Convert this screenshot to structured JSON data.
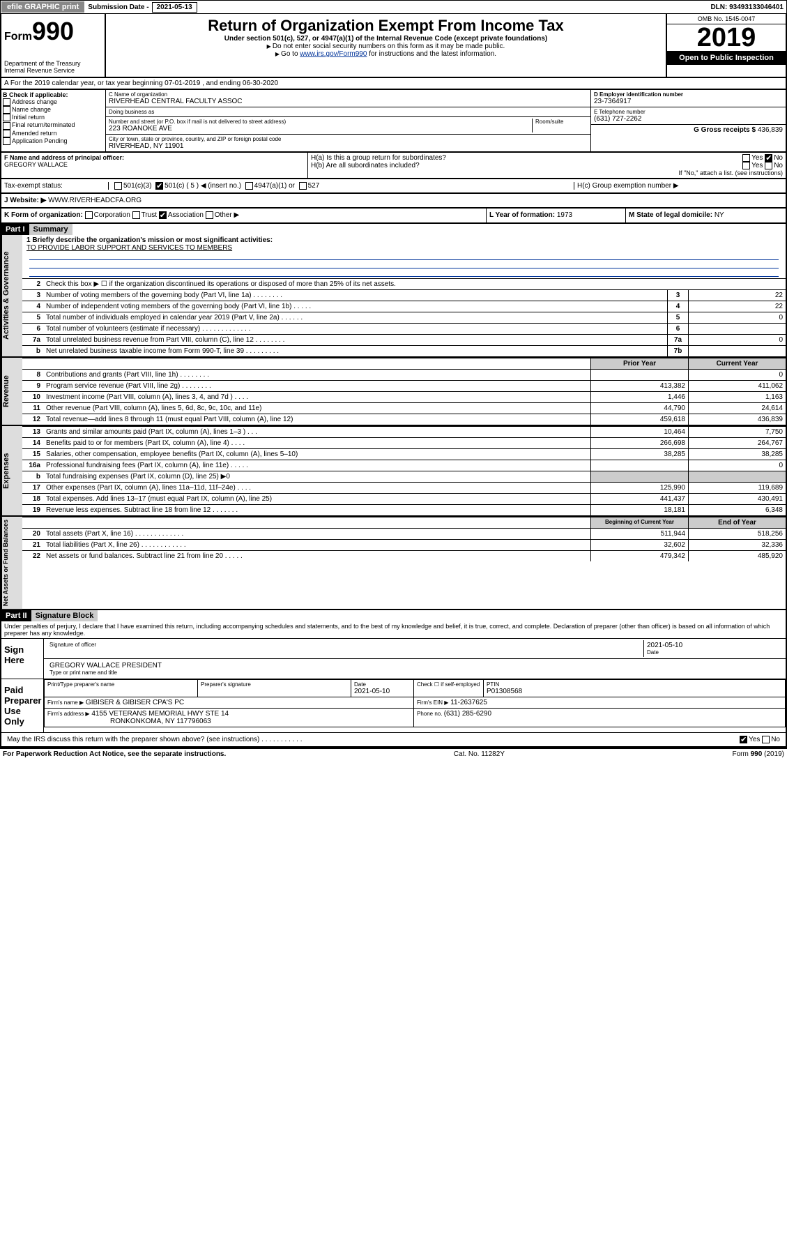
{
  "topbar": {
    "efile": "efile GRAPHIC print",
    "sub_label": "Submission Date - ",
    "sub_date": "2021-05-13",
    "dln_label": "DLN: ",
    "dln": "93493133046401"
  },
  "header": {
    "form_prefix": "Form",
    "form_number": "990",
    "dept": "Department of the Treasury\nInternal Revenue Service",
    "title": "Return of Organization Exempt From Income Tax",
    "sub1": "Under section 501(c), 527, or 4947(a)(1) of the Internal Revenue Code (except private foundations)",
    "note1": "Do not enter social security numbers on this form as it may be made public.",
    "note2_pre": "Go to ",
    "note2_link": "www.irs.gov/Form990",
    "note2_post": " for instructions and the latest information.",
    "omb": "OMB No. 1545-0047",
    "year": "2019",
    "open": "Open to Public Inspection"
  },
  "rowA": "A For the 2019 calendar year, or tax year beginning 07-01-2019   , and ending 06-30-2020",
  "B": {
    "title": "B Check if applicable:",
    "opts": [
      "Address change",
      "Name change",
      "Initial return",
      "Final return/terminated",
      "Amended return",
      "Application Pending"
    ]
  },
  "C": {
    "name_label": "C Name of organization",
    "name": "RIVERHEAD CENTRAL FACULTY ASSOC",
    "dba_label": "Doing business as",
    "dba": "",
    "addr_label": "Number and street (or P.O. box if mail is not delivered to street address)",
    "addr": "223 ROANOKE AVE",
    "room_label": "Room/suite",
    "city_label": "City or town, state or province, country, and ZIP or foreign postal code",
    "city": "RIVERHEAD, NY  11901"
  },
  "D": {
    "ein_label": "D Employer identification number",
    "ein": "23-7364917",
    "tel_label": "E Telephone number",
    "tel": "(631) 727-2262",
    "gross_label": "G Gross receipts $ ",
    "gross": "436,839"
  },
  "F": {
    "label": "F  Name and address of principal officer:",
    "name": "GREGORY WALLACE"
  },
  "H": {
    "a": "H(a)  Is this a group return for subordinates?",
    "b": "H(b)  Are all subordinates included?",
    "b_note": "If \"No,\" attach a list. (see instructions)",
    "c": "H(c)  Group exemption number ▶",
    "yes": "Yes",
    "no": "No"
  },
  "I": {
    "label": "Tax-exempt status:",
    "o1": "501(c)(3)",
    "o2": "501(c) ( 5 ) ◀ (insert no.)",
    "o3": "4947(a)(1) or",
    "o4": "527"
  },
  "J": {
    "label": "J  Website: ▶",
    "val": "WWW.RIVERHEADCFA.ORG"
  },
  "K": {
    "label": "K Form of organization:",
    "o1": "Corporation",
    "o2": "Trust",
    "o3": "Association",
    "o4": "Other ▶"
  },
  "L": {
    "label": "L Year of formation: ",
    "val": "1973"
  },
  "M": {
    "label": "M State of legal domicile: ",
    "val": "NY"
  },
  "part1": {
    "hdr": "Part I",
    "title": "Summary",
    "q1": "1  Briefly describe the organization's mission or most significant activities:",
    "mission": "TO PROVIDE LABOR SUPPORT AND SERVICES TO MEMBERS",
    "q2": "Check this box ▶ ☐  if the organization discontinued its operations or disposed of more than 25% of its net assets.",
    "sections": {
      "gov": "Activities & Governance",
      "rev": "Revenue",
      "exp": "Expenses",
      "net": "Net Assets or Fund Balances"
    },
    "col_prior": "Prior Year",
    "col_curr": "Current Year",
    "col_beg": "Beginning of Current Year",
    "col_end": "End of Year",
    "lines_gov": [
      {
        "n": "3",
        "d": "Number of voting members of the governing body (Part VI, line 1a)  .   .   .   .   .   .   .   .",
        "b": "3",
        "v": "22"
      },
      {
        "n": "4",
        "d": "Number of independent voting members of the governing body (Part VI, line 1b)  .   .   .   .   .",
        "b": "4",
        "v": "22"
      },
      {
        "n": "5",
        "d": "Total number of individuals employed in calendar year 2019 (Part V, line 2a)  .   .   .   .   .   .",
        "b": "5",
        "v": "0"
      },
      {
        "n": "6",
        "d": "Total number of volunteers (estimate if necessary)  .   .   .   .   .   .   .   .   .   .   .   .   .",
        "b": "6",
        "v": ""
      },
      {
        "n": "7a",
        "d": "Total unrelated business revenue from Part VIII, column (C), line 12  .   .   .   .   .   .   .   .",
        "b": "7a",
        "v": "0"
      },
      {
        "n": "b",
        "d": "Net unrelated business taxable income from Form 990-T, line 39  .   .   .   .   .   .   .   .   .",
        "b": "7b",
        "v": ""
      }
    ],
    "lines_rev": [
      {
        "n": "8",
        "d": "Contributions and grants (Part VIII, line 1h)  .   .   .   .   .   .   .   .",
        "p": "",
        "c": "0"
      },
      {
        "n": "9",
        "d": "Program service revenue (Part VIII, line 2g)  .   .   .   .   .   .   .   .",
        "p": "413,382",
        "c": "411,062"
      },
      {
        "n": "10",
        "d": "Investment income (Part VIII, column (A), lines 3, 4, and 7d )  .   .   .   .",
        "p": "1,446",
        "c": "1,163"
      },
      {
        "n": "11",
        "d": "Other revenue (Part VIII, column (A), lines 5, 6d, 8c, 9c, 10c, and 11e)",
        "p": "44,790",
        "c": "24,614"
      },
      {
        "n": "12",
        "d": "Total revenue—add lines 8 through 11 (must equal Part VIII, column (A), line 12)",
        "p": "459,618",
        "c": "436,839"
      }
    ],
    "lines_exp": [
      {
        "n": "13",
        "d": "Grants and similar amounts paid (Part IX, column (A), lines 1–3 )  .   .   .",
        "p": "10,464",
        "c": "7,750"
      },
      {
        "n": "14",
        "d": "Benefits paid to or for members (Part IX, column (A), line 4)  .   .   .   .",
        "p": "266,698",
        "c": "264,767"
      },
      {
        "n": "15",
        "d": "Salaries, other compensation, employee benefits (Part IX, column (A), lines 5–10)",
        "p": "38,285",
        "c": "38,285"
      },
      {
        "n": "16a",
        "d": "Professional fundraising fees (Part IX, column (A), line 11e)  .   .   .   .   .",
        "p": "",
        "c": "0"
      },
      {
        "n": "b",
        "d": "Total fundraising expenses (Part IX, column (D), line 25) ▶0",
        "p": null,
        "c": null
      },
      {
        "n": "17",
        "d": "Other expenses (Part IX, column (A), lines 11a–11d, 11f–24e)  .   .   .   .",
        "p": "125,990",
        "c": "119,689"
      },
      {
        "n": "18",
        "d": "Total expenses. Add lines 13–17 (must equal Part IX, column (A), line 25)",
        "p": "441,437",
        "c": "430,491"
      },
      {
        "n": "19",
        "d": "Revenue less expenses. Subtract line 18 from line 12  .   .   .   .   .   .   .",
        "p": "18,181",
        "c": "6,348"
      }
    ],
    "lines_net": [
      {
        "n": "20",
        "d": "Total assets (Part X, line 16)  .   .   .   .   .   .   .   .   .   .   .   .   .",
        "p": "511,944",
        "c": "518,256"
      },
      {
        "n": "21",
        "d": "Total liabilities (Part X, line 26)  .   .   .   .   .   .   .   .   .   .   .   .",
        "p": "32,602",
        "c": "32,336"
      },
      {
        "n": "22",
        "d": "Net assets or fund balances. Subtract line 21 from line 20  .   .   .   .   .",
        "p": "479,342",
        "c": "485,920"
      }
    ]
  },
  "part2": {
    "hdr": "Part II",
    "title": "Signature Block",
    "decl": "Under penalties of perjury, I declare that I have examined this return, including accompanying schedules and statements, and to the best of my knowledge and belief, it is true, correct, and complete. Declaration of preparer (other than officer) is based on all information of which preparer has any knowledge.",
    "sign_here": "Sign Here",
    "sig_officer": "Signature of officer",
    "date": "2021-05-10",
    "date_label": "Date",
    "officer_name": "GREGORY WALLACE  PRESIDENT",
    "name_label": "Type or print name and title",
    "paid": "Paid Preparer Use Only",
    "prep_name_label": "Print/Type preparer's name",
    "prep_sig_label": "Preparer's signature",
    "prep_date_label": "Date",
    "prep_date": "2021-05-10",
    "check_label": "Check ☐ if self-employed",
    "ptin_label": "PTIN",
    "ptin": "P01308568",
    "firm_name_label": "Firm's name    ▶",
    "firm_name": "GIBISER & GIBISER CPA'S PC",
    "firm_ein_label": "Firm's EIN ▶",
    "firm_ein": "11-2637625",
    "firm_addr_label": "Firm's address ▶",
    "firm_addr": "4155 VETERANS MEMORIAL HWY STE 14",
    "firm_city": "RONKONKOMA, NY  117796063",
    "phone_label": "Phone no. ",
    "phone": "(631) 285-6290",
    "discuss": "May the IRS discuss this return with the preparer shown above? (see instructions)   .   .   .   .   .   .   .   .   .   .   .",
    "yes": "Yes",
    "no": "No"
  },
  "footer": {
    "pra": "For Paperwork Reduction Act Notice, see the separate instructions.",
    "cat": "Cat. No. 11282Y",
    "form": "Form 990 (2019)"
  }
}
